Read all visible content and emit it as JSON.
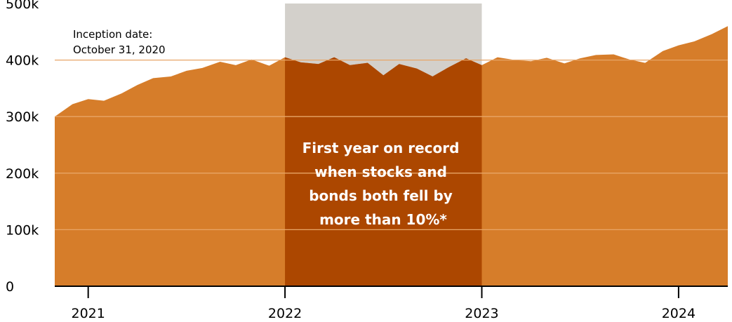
{
  "chart_data": {
    "type": "area",
    "title": "",
    "xlabel": "",
    "ylabel": "",
    "xlim": [
      2020.83,
      2024.25
    ],
    "ylim": [
      0,
      500000
    ],
    "grid": true,
    "x_ticks": [
      {
        "value": 2021,
        "label": "2021"
      },
      {
        "value": 2022,
        "label": "2022"
      },
      {
        "value": 2023,
        "label": "2023"
      },
      {
        "value": 2024,
        "label": "2024"
      }
    ],
    "y_ticks": [
      {
        "value": 0,
        "label": "0"
      },
      {
        "value": 100000,
        "label": "100k"
      },
      {
        "value": 200000,
        "label": "200k"
      },
      {
        "value": 300000,
        "label": "300k"
      },
      {
        "value": 400000,
        "label": "400k"
      },
      {
        "value": 500000,
        "label": "500k"
      }
    ],
    "x": [
      2020.83,
      2020.92,
      2021.0,
      2021.08,
      2021.17,
      2021.25,
      2021.33,
      2021.42,
      2021.5,
      2021.58,
      2021.67,
      2021.75,
      2021.83,
      2021.92,
      2022.0,
      2022.08,
      2022.17,
      2022.25,
      2022.33,
      2022.42,
      2022.5,
      2022.58,
      2022.67,
      2022.75,
      2022.83,
      2022.92,
      2023.0,
      2023.08,
      2023.17,
      2023.25,
      2023.33,
      2023.42,
      2023.5,
      2023.58,
      2023.67,
      2023.75,
      2023.83,
      2023.92,
      2024.0,
      2024.08,
      2024.17,
      2024.25
    ],
    "values": [
      300000,
      322000,
      331000,
      328000,
      341000,
      356000,
      368000,
      371000,
      381000,
      386000,
      397000,
      391000,
      401000,
      390000,
      405000,
      396000,
      393000,
      405000,
      391000,
      395000,
      373000,
      393000,
      385000,
      371000,
      387000,
      403000,
      391000,
      405000,
      400000,
      398000,
      404000,
      394000,
      403000,
      409000,
      410000,
      401000,
      395000,
      416000,
      426000,
      433000,
      446000,
      460000
    ],
    "highlight": {
      "x_start": 2022,
      "x_end": 2023,
      "label_lines": [
        "First year on record",
        "when stocks and",
        "bonds both fell  by",
        "more than 10%*"
      ]
    },
    "annotation_lines": [
      "Inception date:",
      "October 31, 2020"
    ],
    "colors": {
      "area": "#d67d2a",
      "highlight_area": "#ac4700",
      "highlight_band": "#d3d0cb",
      "gridline": "#e8a567"
    }
  }
}
